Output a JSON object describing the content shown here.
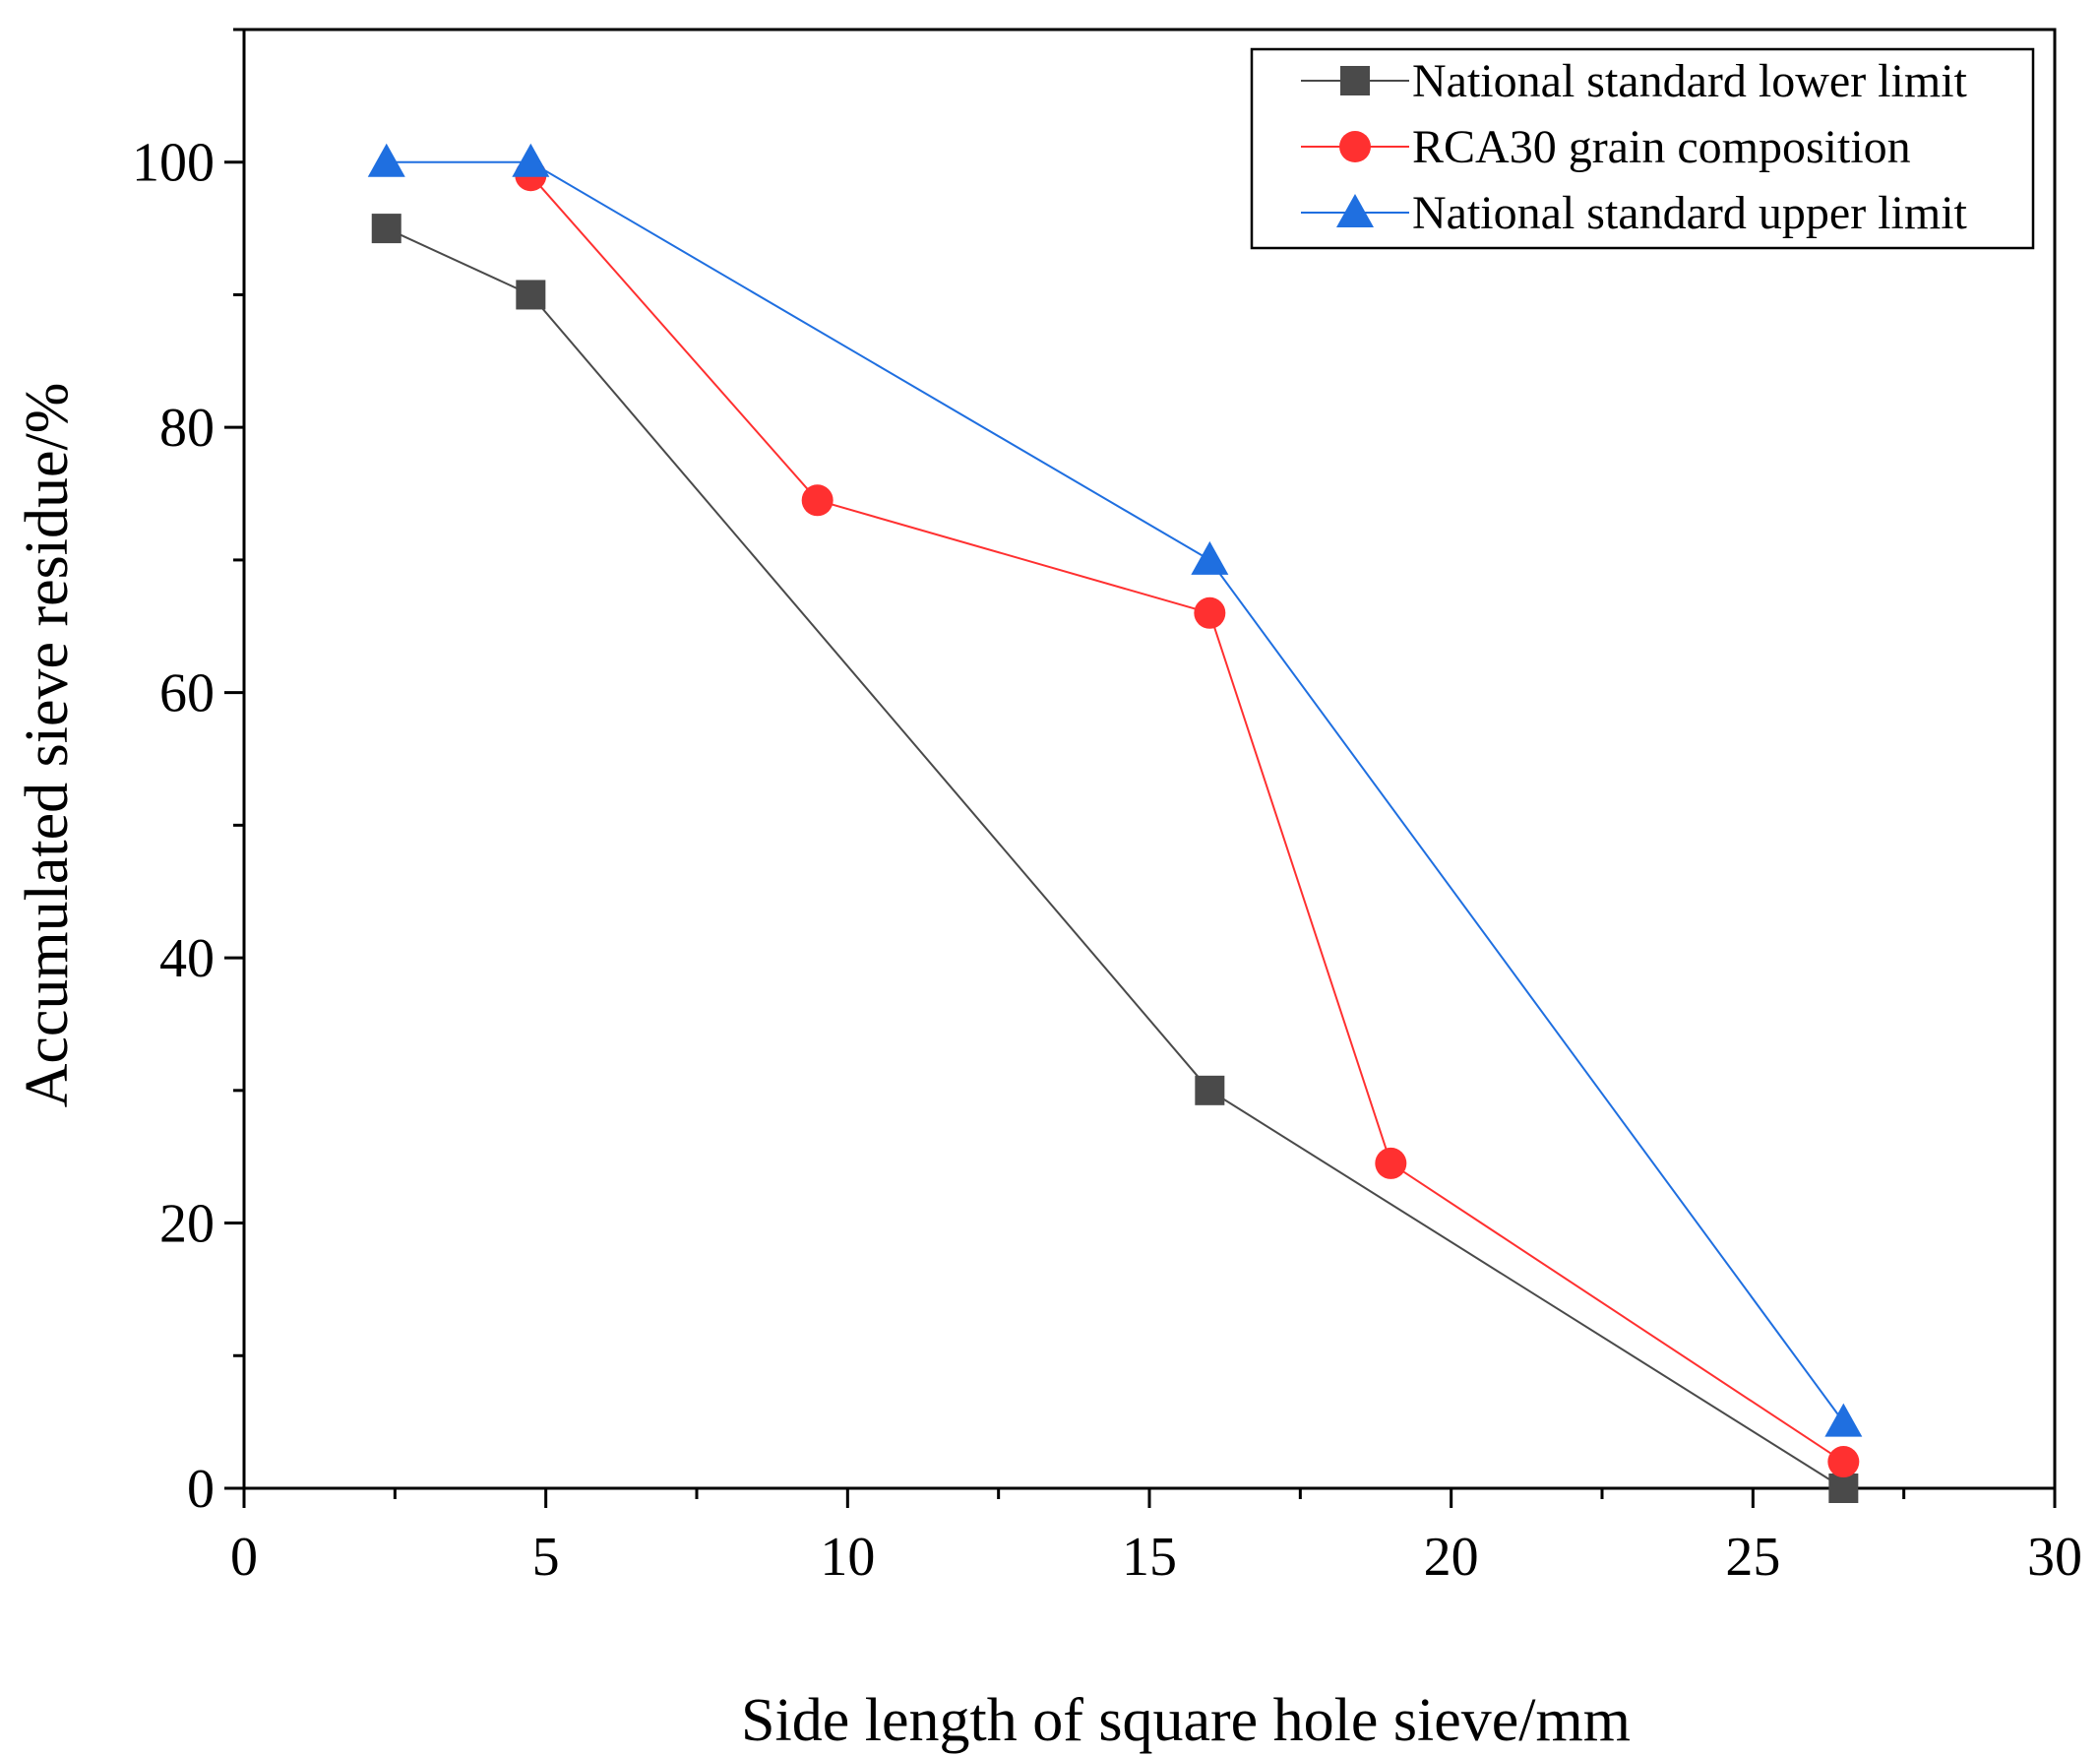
{
  "chart_data": {
    "type": "line",
    "title": "",
    "xlabel": "Side length of square hole sieve/mm",
    "ylabel": "Accumulated sieve residue/%",
    "xlim": [
      0,
      30
    ],
    "ylim": [
      0,
      110
    ],
    "xticks": [
      0,
      5,
      10,
      15,
      20,
      25,
      30
    ],
    "xtick_labels": [
      "0",
      "5",
      "10",
      "15",
      "20",
      "25",
      "30"
    ],
    "yticks": [
      0,
      20,
      40,
      60,
      80,
      100
    ],
    "ytick_labels": [
      "0",
      "20",
      "40",
      "60",
      "80",
      "100"
    ],
    "grid": false,
    "legend_position": "top-right",
    "series": [
      {
        "name": "National standard lower limit",
        "marker": "square",
        "color": "#4a4a4a",
        "x": [
          2.36,
          4.75,
          16,
          26.5
        ],
        "y": [
          95,
          90,
          30,
          0
        ]
      },
      {
        "name": "RCA30 grain composition",
        "marker": "circle",
        "color": "#ff3030",
        "x": [
          4.75,
          9.5,
          16,
          19,
          26.5
        ],
        "y": [
          99,
          74.5,
          66,
          24.5,
          2
        ]
      },
      {
        "name": "National standard upper limit",
        "marker": "triangle",
        "color": "#1f6fe0",
        "x": [
          2.36,
          4.75,
          16,
          26.5
        ],
        "y": [
          100,
          100,
          70,
          5
        ]
      }
    ]
  }
}
